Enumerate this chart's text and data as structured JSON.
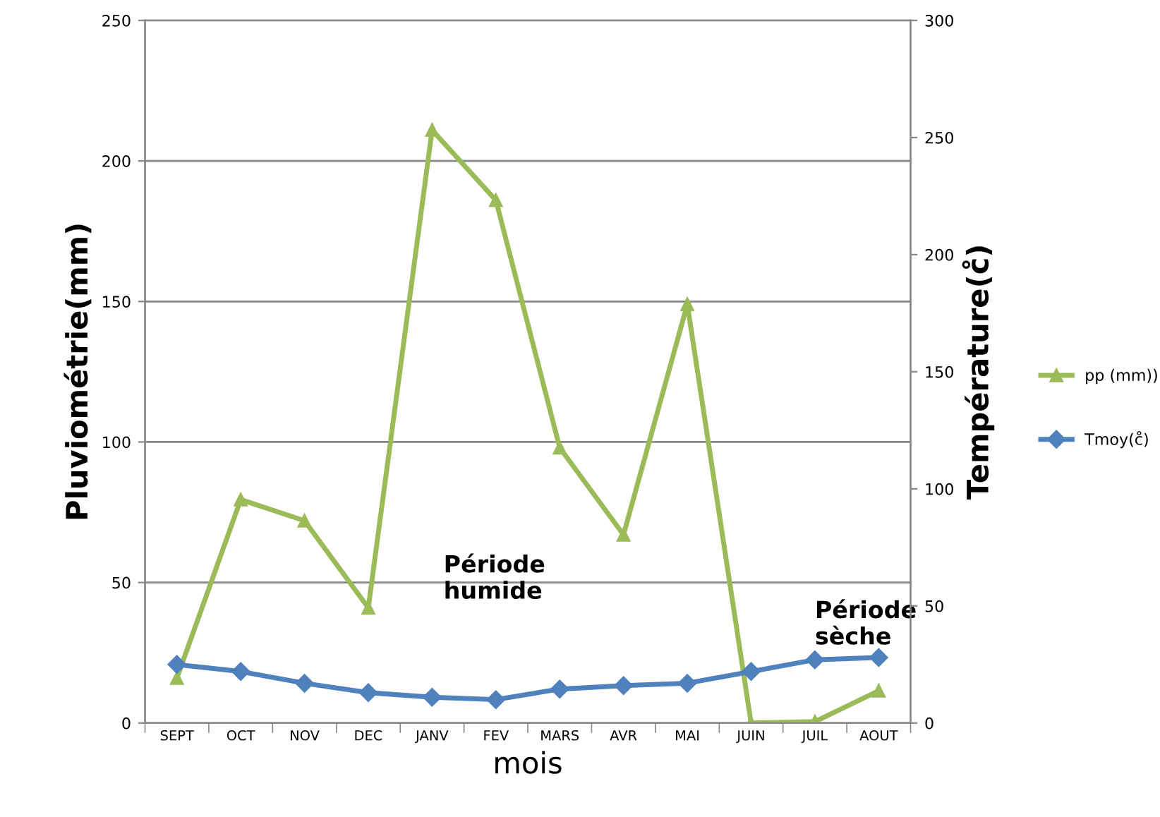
{
  "chart_data": {
    "type": "line",
    "xlabel": "mois",
    "ylabel": "Pluviométrie(mm)",
    "y2label": "Température(c̊)",
    "categories": [
      "SEPT",
      "OCT",
      "NOV",
      "DEC",
      "JANV",
      "FEV",
      "MARS",
      "AVR",
      "MAI",
      "JUIN",
      "JUIL",
      "AOUT"
    ],
    "series": [
      {
        "name": "pp (mm))",
        "color": "#9bbb59",
        "marker": "triangle",
        "values": [
          16,
          79.5,
          72,
          41,
          211,
          186,
          98,
          67,
          149,
          0,
          0.5,
          11.5
        ]
      },
      {
        "name": "Tmoy(c̊)",
        "color": "#4f81bd",
        "marker": "diamond",
        "axis": "y2",
        "values": [
          25,
          22,
          17,
          13,
          11,
          10,
          14.5,
          16,
          17,
          22,
          27,
          28
        ]
      }
    ],
    "ylim": [
      0,
      250
    ],
    "yticks": [
      0,
      50,
      100,
      150,
      200,
      250
    ],
    "y2lim": [
      0,
      300
    ],
    "y2ticks": [
      0,
      50,
      100,
      150,
      200,
      250,
      300
    ],
    "grid": "y",
    "legend": "right",
    "annotations": [
      "Période\nhumide",
      "Période\nsèche"
    ]
  }
}
